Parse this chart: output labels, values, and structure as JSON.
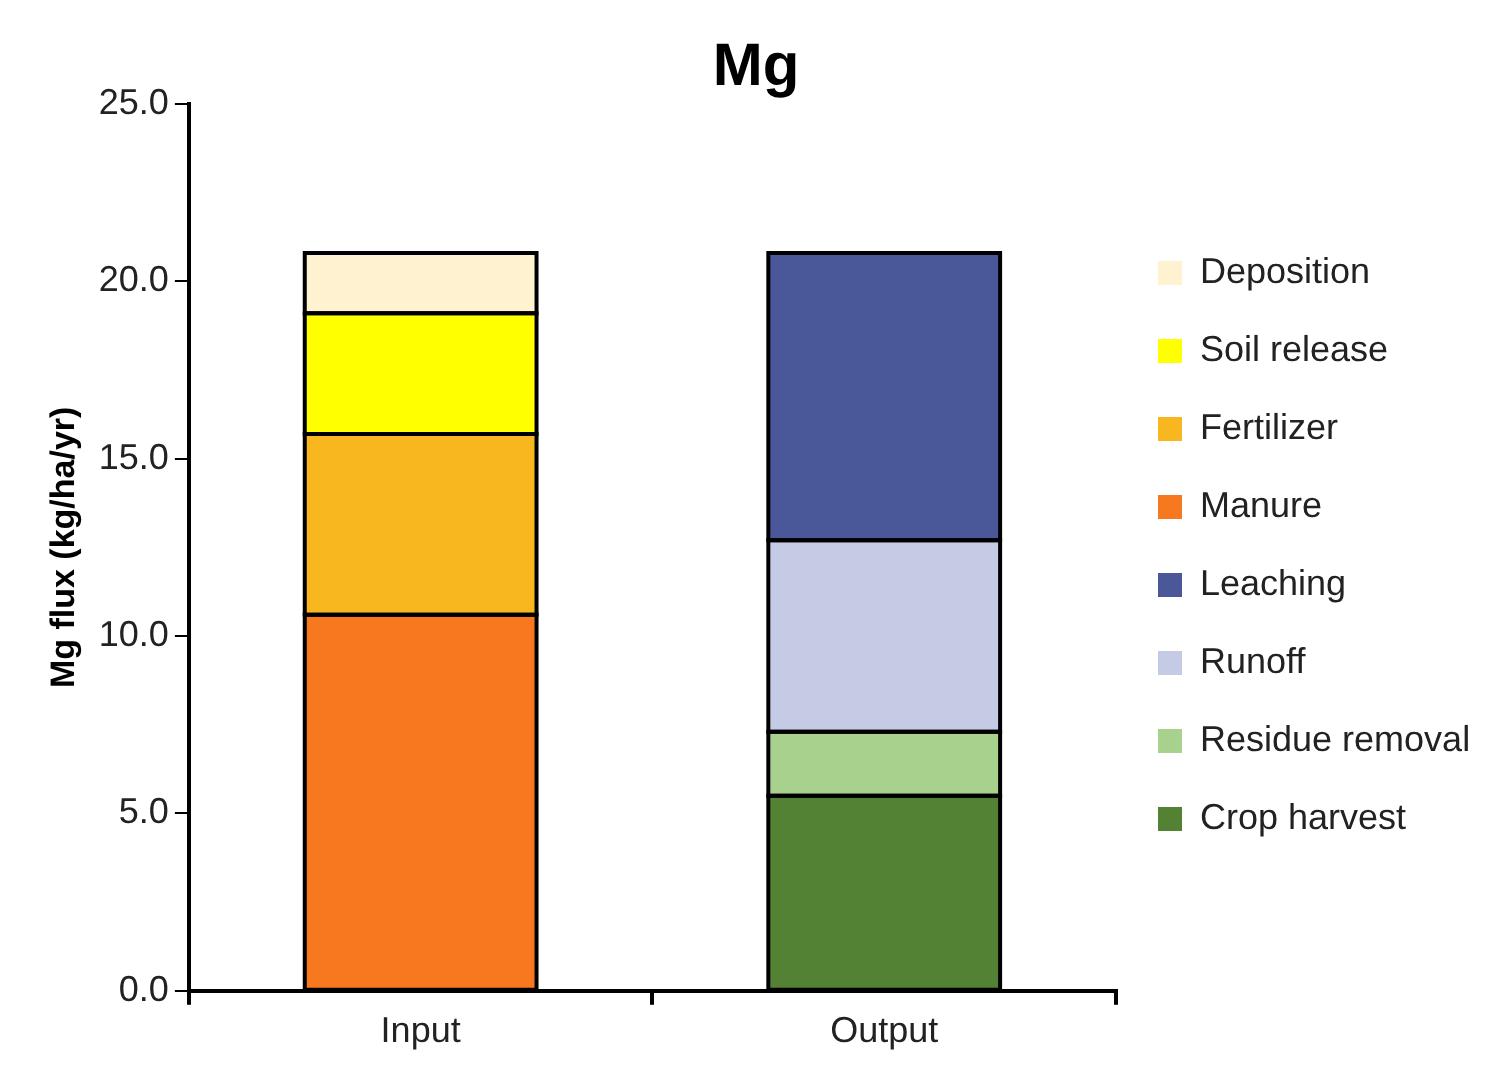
{
  "chart_data": {
    "type": "bar",
    "title": "Mg",
    "ylabel": "Mg flux (kg/ha/yr)",
    "categories": [
      "Input",
      "Output"
    ],
    "stacked": true,
    "ylim": [
      0,
      25
    ],
    "yticks": [
      {
        "value": 0,
        "label": "0.0"
      },
      {
        "value": 5,
        "label": "5.0"
      },
      {
        "value": 10,
        "label": "10.0"
      },
      {
        "value": 15,
        "label": "15.0"
      },
      {
        "value": 20,
        "label": "20.0"
      },
      {
        "value": 25,
        "label": "25.0"
      }
    ],
    "grid": false,
    "legend": "right",
    "series": [
      {
        "name": "Crop harvest",
        "color": "#548235",
        "values": [
          null,
          5.5
        ]
      },
      {
        "name": "Residue removal",
        "color": "#a9d18e",
        "values": [
          null,
          1.8
        ]
      },
      {
        "name": "Runoff",
        "color": "#c6cbe5",
        "values": [
          null,
          5.4
        ]
      },
      {
        "name": "Leaching",
        "color": "#4a5899",
        "values": [
          null,
          8.1
        ]
      },
      {
        "name": "Manure",
        "color": "#f8781f",
        "values": [
          10.6,
          null
        ]
      },
      {
        "name": "Fertilizer",
        "color": "#f8b71f",
        "values": [
          5.1,
          null
        ]
      },
      {
        "name": "Soil release",
        "color": "#ffff00",
        "values": [
          3.4,
          null
        ]
      },
      {
        "name": "Deposition",
        "color": "#fff2d0",
        "values": [
          1.7,
          null
        ]
      }
    ]
  }
}
